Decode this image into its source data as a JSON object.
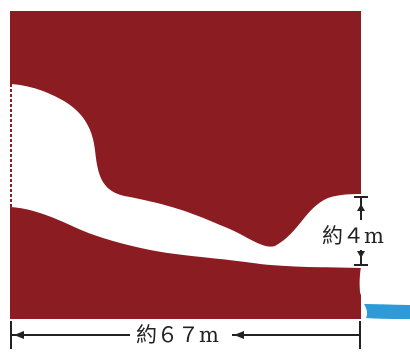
{
  "labels": {
    "height": "約４m",
    "width": "約６７m"
  },
  "colors": {
    "rock": "#8b1c22",
    "water": "#2e9ad8",
    "cave": "#ffffff",
    "lines": "#222222"
  }
}
